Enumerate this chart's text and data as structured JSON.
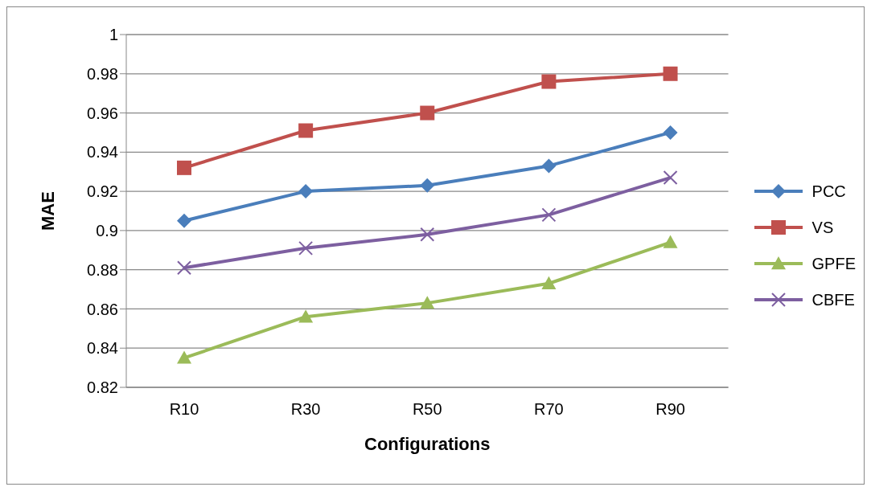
{
  "chart_data": {
    "type": "line",
    "xlabel": "Configurations",
    "ylabel": "MAE",
    "categories": [
      "R10",
      "R30",
      "R50",
      "R70",
      "R90"
    ],
    "series": [
      {
        "name": "PCC",
        "color": "#4a7ebb",
        "marker": "diamond",
        "values": [
          0.905,
          0.92,
          0.923,
          0.933,
          0.95
        ]
      },
      {
        "name": "VS",
        "color": "#c0504d",
        "marker": "square",
        "values": [
          0.932,
          0.951,
          0.96,
          0.976,
          0.98
        ]
      },
      {
        "name": "GPFE",
        "color": "#9bbb59",
        "marker": "triangle",
        "values": [
          0.835,
          0.856,
          0.863,
          0.873,
          0.894
        ]
      },
      {
        "name": "CBFE",
        "color": "#7d5fa0",
        "marker": "cross",
        "values": [
          0.881,
          0.891,
          0.898,
          0.908,
          0.927
        ]
      }
    ],
    "ylim": [
      0.82,
      1
    ],
    "yticks": [
      0.82,
      0.84,
      0.86,
      0.88,
      0.9,
      0.92,
      0.94,
      0.96,
      0.98,
      1
    ],
    "grid": "y",
    "legend": "right",
    "line_style": "solid"
  }
}
